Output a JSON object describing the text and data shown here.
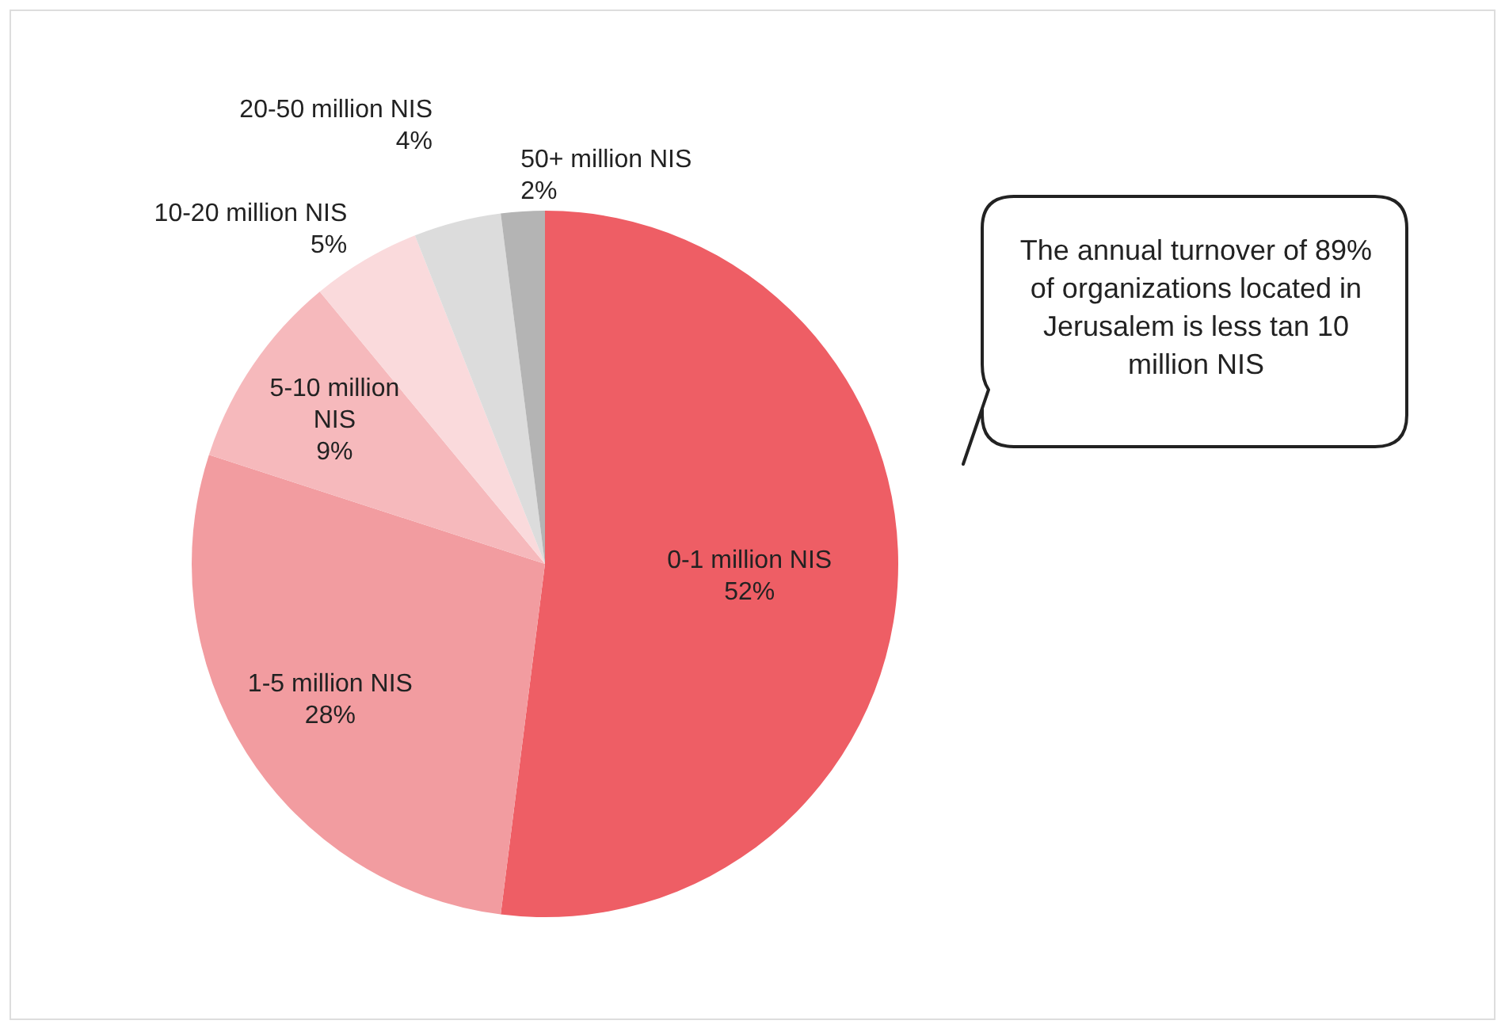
{
  "chart_data": {
    "type": "pie",
    "categories": [
      "0-1 million NIS",
      "1-5 million NIS",
      "5-10 million NIS",
      "10-20 million NIS",
      "20-50 million NIS",
      "50+ million NIS"
    ],
    "values": [
      52,
      28,
      9,
      5,
      4,
      2
    ],
    "colors": [
      "#ee5e65",
      "#f29ca0",
      "#f6b9bc",
      "#fadadc",
      "#dcdcdc",
      "#b4b4b4"
    ],
    "value_labels": [
      "52%",
      "28%",
      "9%",
      "5%",
      "4%",
      "2%"
    ],
    "annotations": [
      "The annual turnover of 89% of organizations located in Jerusalem is less tan 10 million NIS"
    ],
    "legend": false
  }
}
